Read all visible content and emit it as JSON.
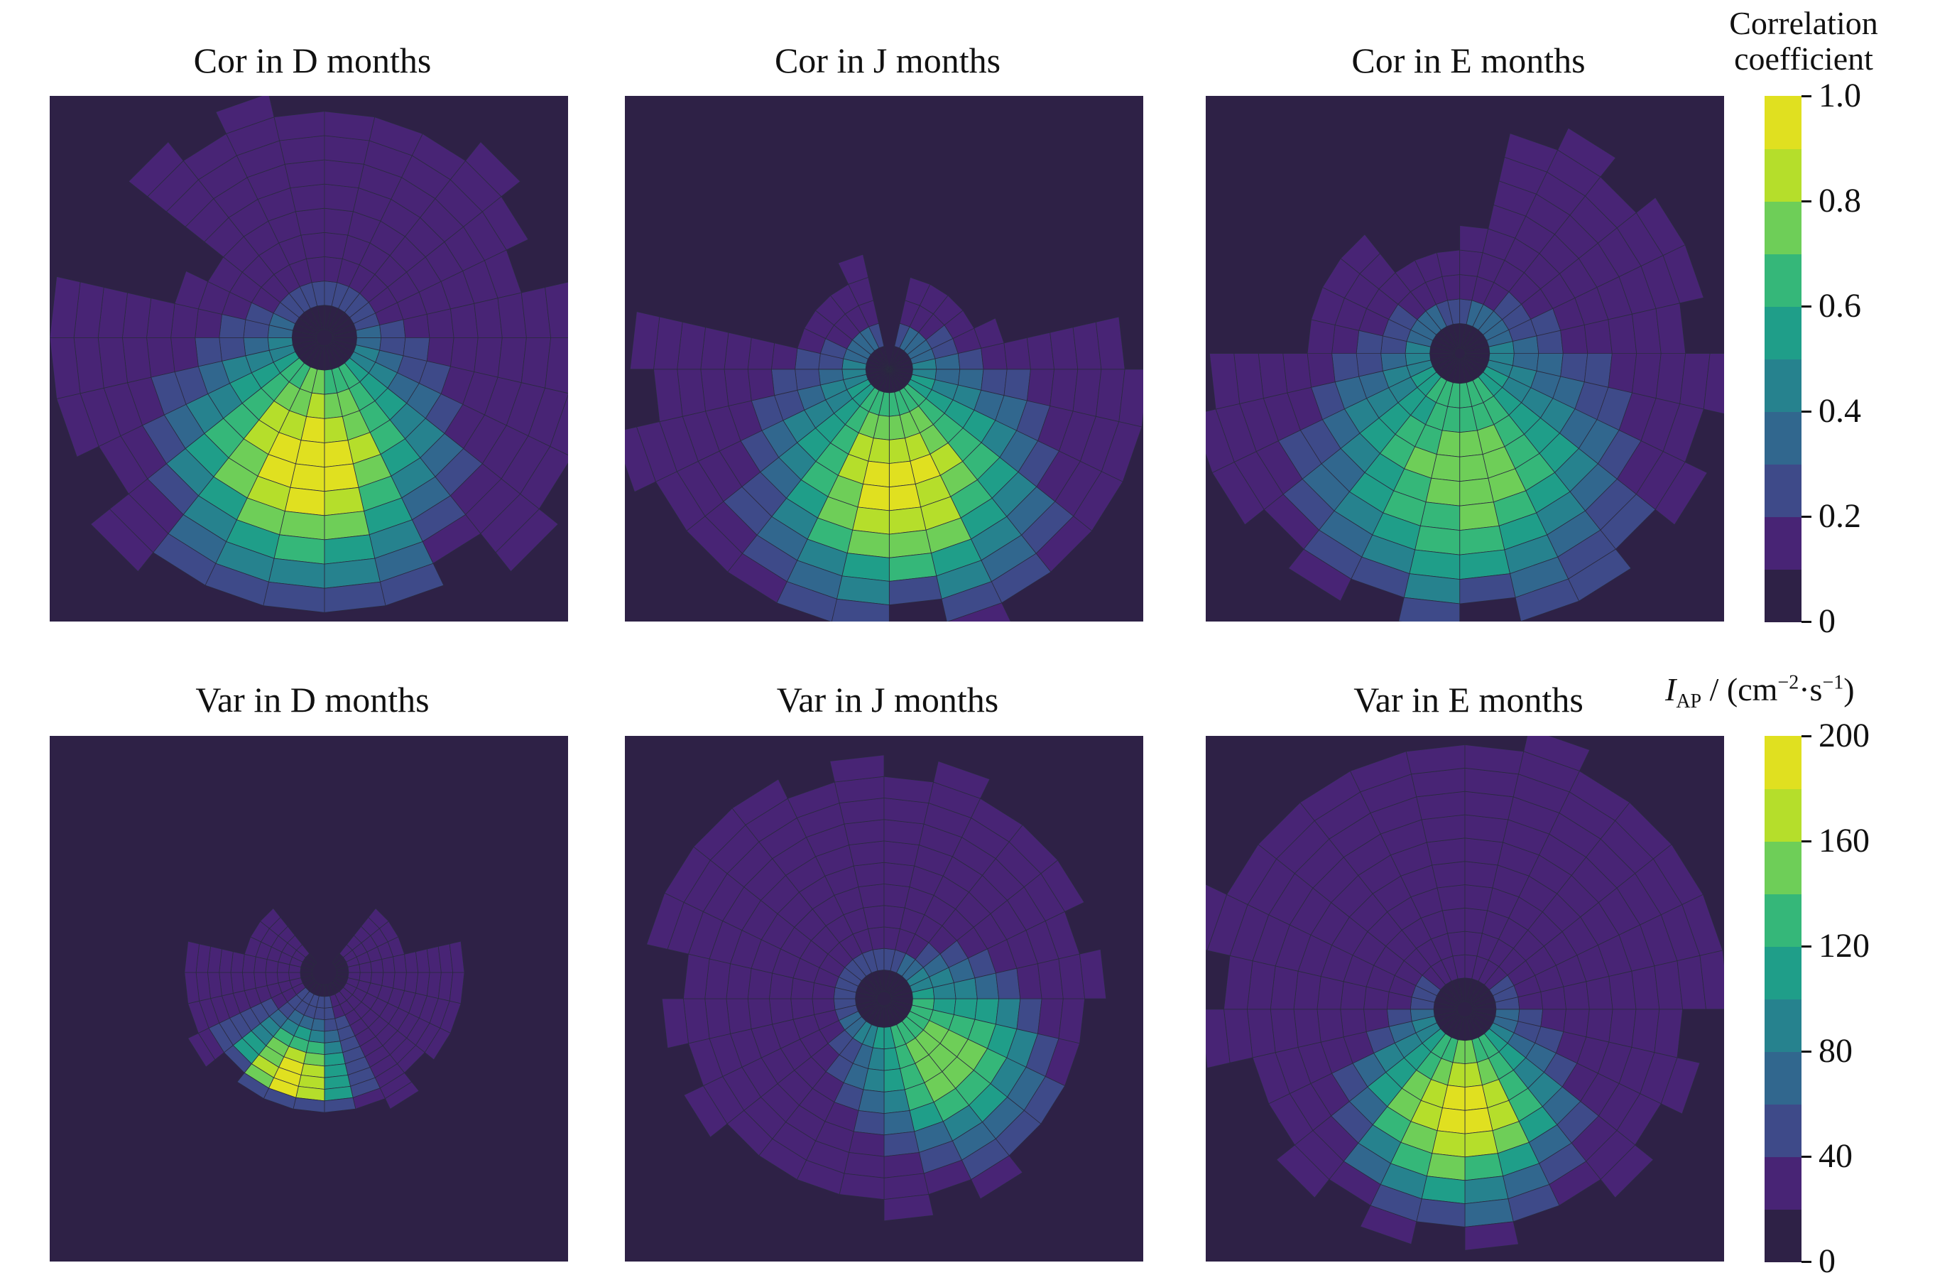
{
  "chart_data": [
    {
      "type": "heatmap",
      "title": "Cor in D months",
      "metric": "correlation"
    },
    {
      "type": "heatmap",
      "title": "Cor in J months",
      "metric": "correlation"
    },
    {
      "type": "heatmap",
      "title": "Cor in E months",
      "metric": "correlation"
    },
    {
      "type": "heatmap",
      "title": "Var in D months",
      "metric": "variance"
    },
    {
      "type": "heatmap",
      "title": "Var in J months",
      "metric": "variance"
    },
    {
      "type": "heatmap",
      "title": "Var in E months",
      "metric": "variance"
    }
  ],
  "colorbars": {
    "correlation": {
      "title_line1": "Correlation",
      "title_line2": "coefficient",
      "range": [
        0,
        1.0
      ],
      "ticks": [
        "1.0",
        "0.8",
        "0.6",
        "0.4",
        "0.2",
        "0"
      ],
      "tick_values": [
        1.0,
        0.8,
        0.6,
        0.4,
        0.2,
        0
      ]
    },
    "variance": {
      "unit_symbol": "I",
      "unit_sub": "AP",
      "unit_main": " / (cm",
      "unit_exp1": "−2",
      "unit_mid": "·s",
      "unit_exp2": "−1",
      "unit_close": ")",
      "range": [
        0,
        200
      ],
      "ticks": [
        "200",
        "160",
        "120",
        "80",
        "40",
        "0"
      ],
      "tick_values": [
        200,
        160,
        120,
        80,
        40,
        0
      ]
    }
  },
  "colors": {
    "background": "#2e2146",
    "levels": [
      "#2e2146",
      "#482475",
      "#3e4a89",
      "#31678e",
      "#26828e",
      "#1f9e89",
      "#35b779",
      "#6ece58",
      "#b5de2b",
      "#e0e020"
    ]
  }
}
